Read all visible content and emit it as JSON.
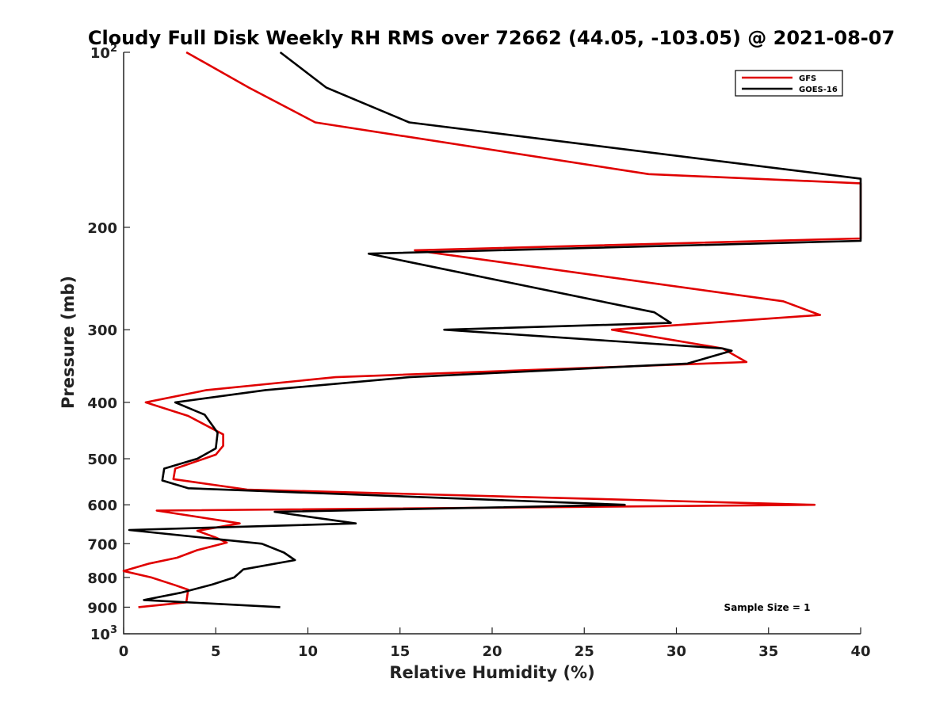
{
  "chart_data": {
    "type": "line",
    "title": "Cloudy Full Disk Weekly RH RMS over 72662 (44.05, -103.05) @ 2021-08-07",
    "xlabel": "Relative Humidity (%)",
    "ylabel": "Pressure (mb)",
    "xlim": [
      0,
      40
    ],
    "ylim": [
      100,
      1000
    ],
    "y_scale": "log",
    "y_reversed": true,
    "grid": false,
    "legend_position": "top-right",
    "x_ticks": [
      "0",
      "5",
      "10",
      "15",
      "20",
      "25",
      "30",
      "35",
      "40"
    ],
    "y_ticks": [
      {
        "value": 100,
        "label": "10",
        "sup": "2"
      },
      {
        "value": 200,
        "label": "200",
        "sup": ""
      },
      {
        "value": 300,
        "label": "300",
        "sup": ""
      },
      {
        "value": 400,
        "label": "400",
        "sup": ""
      },
      {
        "value": 500,
        "label": "500",
        "sup": ""
      },
      {
        "value": 600,
        "label": "600",
        "sup": ""
      },
      {
        "value": 700,
        "label": "700",
        "sup": ""
      },
      {
        "value": 800,
        "label": "800",
        "sup": ""
      },
      {
        "value": 900,
        "label": "900",
        "sup": ""
      },
      {
        "value": 1000,
        "label": "10",
        "sup": "3"
      }
    ],
    "series": [
      {
        "name": "GFS",
        "color": "#e00000",
        "points": [
          [
            3.4,
            100
          ],
          [
            6.8,
            115
          ],
          [
            10.4,
            132
          ],
          [
            28.5,
            162
          ],
          [
            40,
            168
          ],
          [
            40,
            209
          ],
          [
            15.8,
            219
          ],
          [
            35.8,
            268
          ],
          [
            37.8,
            283
          ],
          [
            26.5,
            300
          ],
          [
            32.5,
            323
          ],
          [
            33.8,
            341
          ],
          [
            11.5,
            362
          ],
          [
            4.5,
            381
          ],
          [
            1.2,
            400
          ],
          [
            3.5,
            422
          ],
          [
            5.4,
            454
          ],
          [
            5.4,
            475
          ],
          [
            5.0,
            492
          ],
          [
            2.8,
            520
          ],
          [
            2.7,
            542
          ],
          [
            6.7,
            565
          ],
          [
            37.5,
            600
          ],
          [
            1.8,
            614
          ],
          [
            6.3,
            646
          ],
          [
            4.0,
            665
          ],
          [
            5.0,
            683
          ],
          [
            5.6,
            697
          ],
          [
            4.0,
            718
          ],
          [
            2.9,
            740
          ],
          [
            1.4,
            757
          ],
          [
            0.0,
            780
          ],
          [
            1.5,
            800
          ],
          [
            2.8,
            825
          ],
          [
            3.5,
            840
          ],
          [
            3.4,
            883
          ],
          [
            0.8,
            900
          ]
        ]
      },
      {
        "name": "GOES-16",
        "color": "#000000",
        "points": [
          [
            8.5,
            100
          ],
          [
            11.0,
            115
          ],
          [
            15.5,
            132
          ],
          [
            40,
            165
          ],
          [
            40,
            211
          ],
          [
            13.3,
            222
          ],
          [
            28.8,
            280
          ],
          [
            29.7,
            292
          ],
          [
            17.4,
            300
          ],
          [
            32.5,
            323
          ],
          [
            33.0,
            326
          ],
          [
            30.6,
            343
          ],
          [
            15.5,
            362
          ],
          [
            7.7,
            381
          ],
          [
            2.8,
            400
          ],
          [
            4.4,
            420
          ],
          [
            5.1,
            451
          ],
          [
            5.0,
            480
          ],
          [
            4.0,
            500
          ],
          [
            2.2,
            520
          ],
          [
            2.1,
            545
          ],
          [
            3.5,
            562
          ],
          [
            27.2,
            600
          ],
          [
            8.2,
            617
          ],
          [
            12.6,
            646
          ],
          [
            0.3,
            663
          ],
          [
            7.5,
            700
          ],
          [
            8.7,
            725
          ],
          [
            9.3,
            747
          ],
          [
            6.5,
            775
          ],
          [
            6.0,
            800
          ],
          [
            4.8,
            823
          ],
          [
            3.1,
            850
          ],
          [
            1.1,
            875
          ],
          [
            8.5,
            900
          ]
        ]
      }
    ],
    "annotation": "Sample Size = 1"
  }
}
